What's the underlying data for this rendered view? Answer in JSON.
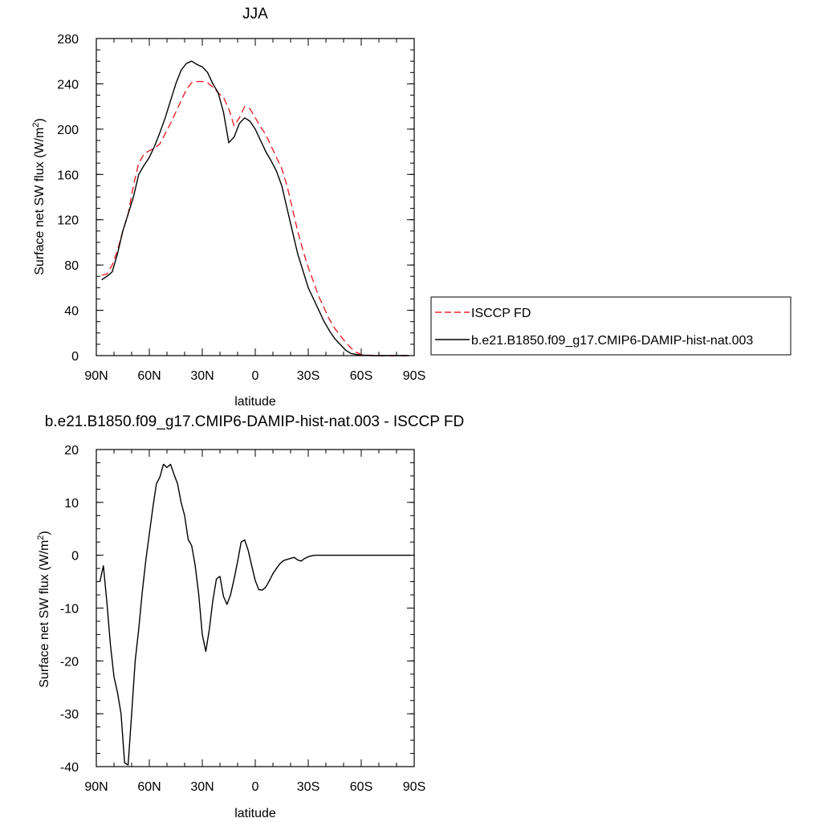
{
  "chart_data": [
    {
      "type": "line",
      "title": "JJA",
      "xlabel": "latitude",
      "ylabel": "Surface net SW flux (W/m",
      "ylabel_sup": "2",
      "ylabel_close": ")",
      "xlim": [
        90,
        -90
      ],
      "ylim": [
        0,
        280
      ],
      "xticks": [
        90,
        60,
        30,
        0,
        -30,
        -60,
        -90
      ],
      "xtick_labels": [
        "90N",
        "60N",
        "30N",
        "0",
        "30S",
        "60S",
        "90S"
      ],
      "yticks": [
        0,
        40,
        80,
        120,
        160,
        200,
        240,
        280
      ],
      "ytick_labels": [
        "0",
        "40",
        "80",
        "120",
        "160",
        "200",
        "240",
        "280"
      ],
      "legend": {
        "placement": "right",
        "entries": [
          "ISCCP FD",
          "b.e21.B1850.f09_g17.CMIP6-DAMIP-hist-nat.003"
        ]
      },
      "series": [
        {
          "name": "ISCCP FD",
          "color": "#e8242a",
          "dash": true,
          "x": [
            87,
            84,
            81,
            78,
            75,
            72,
            69,
            66,
            63,
            60,
            57,
            54,
            51,
            48,
            45,
            42,
            39,
            36,
            33,
            30,
            27,
            24,
            21,
            18,
            15,
            12,
            9,
            6,
            3,
            0,
            -3,
            -6,
            -9,
            -12,
            -15,
            -18,
            -21,
            -24,
            -27,
            -30,
            -33,
            -36,
            -39,
            -42,
            -45,
            -48,
            -51,
            -54,
            -57,
            -60,
            -63,
            -66,
            -69,
            -72,
            -75,
            -78,
            -81,
            -84,
            -87
          ],
          "y": [
            71,
            72,
            80,
            93,
            110,
            125,
            150,
            170,
            178,
            181,
            183,
            187,
            196,
            205,
            215,
            225,
            235,
            241,
            242,
            242,
            241,
            237,
            232,
            228,
            218,
            203,
            210,
            220,
            218,
            210,
            202,
            195,
            185,
            175,
            165,
            150,
            130,
            110,
            93,
            78,
            65,
            52,
            42,
            32,
            24,
            18,
            12,
            7,
            3,
            1,
            0.5,
            0.2,
            0,
            0,
            0,
            0,
            0,
            0,
            0
          ]
        },
        {
          "name": "b.e21.B1850.f09_g17.CMIP6-DAMIP-hist-nat.003",
          "color": "#000000",
          "dash": false,
          "x": [
            87,
            84,
            81,
            78,
            75,
            72,
            69,
            66,
            63,
            60,
            57,
            54,
            51,
            48,
            45,
            42,
            39,
            36,
            33,
            30,
            27,
            24,
            21,
            18,
            15,
            12,
            9,
            6,
            3,
            0,
            -3,
            -6,
            -9,
            -12,
            -15,
            -18,
            -21,
            -24,
            -27,
            -30,
            -33,
            -36,
            -39,
            -42,
            -45,
            -48,
            -51,
            -54,
            -57,
            -60,
            -63,
            -66,
            -69,
            -72,
            -75,
            -78,
            -81,
            -84,
            -87
          ],
          "y": [
            67,
            70,
            74,
            90,
            110,
            125,
            140,
            160,
            168,
            175,
            185,
            197,
            210,
            225,
            240,
            252,
            258,
            260,
            257,
            255,
            250,
            240,
            232,
            215,
            188,
            193,
            205,
            210,
            207,
            200,
            190,
            180,
            172,
            163,
            150,
            130,
            110,
            90,
            75,
            60,
            50,
            40,
            30,
            22,
            15,
            10,
            5,
            2,
            1,
            0.5,
            0.2,
            0,
            0,
            0,
            0,
            0,
            0,
            0,
            0
          ]
        }
      ]
    },
    {
      "type": "line",
      "title": "b.e21.B1850.f09_g17.CMIP6-DAMIP-hist-nat.003 - ISCCP FD",
      "xlabel": "latitude",
      "ylabel": "Surface net SW flux (W/m",
      "ylabel_sup": "2",
      "ylabel_close": ")",
      "xlim": [
        90,
        -90
      ],
      "ylim": [
        -40,
        20
      ],
      "xticks": [
        90,
        60,
        30,
        0,
        -30,
        -60,
        -90
      ],
      "xtick_labels": [
        "90N",
        "60N",
        "30N",
        "0",
        "30S",
        "60S",
        "90S"
      ],
      "yticks": [
        -40,
        -30,
        -20,
        -10,
        0,
        10,
        20
      ],
      "ytick_labels": [
        "-40",
        "-30",
        "-20",
        "-10",
        "0",
        "10",
        "20"
      ],
      "series": [
        {
          "color": "#000000",
          "dash": false,
          "x": [
            88,
            86,
            84,
            82,
            80,
            78,
            76,
            74,
            72,
            70,
            68,
            66,
            64,
            62,
            60,
            58,
            56,
            54,
            52,
            50,
            48,
            46,
            44,
            42,
            40,
            38,
            36,
            34,
            32,
            30,
            28,
            26,
            24,
            22,
            20,
            18,
            16,
            14,
            12,
            10,
            8,
            6,
            4,
            2,
            0,
            -2,
            -4,
            -6,
            -8,
            -10,
            -12,
            -14,
            -16,
            -18,
            -20,
            -22,
            -24,
            -26,
            -28,
            -30,
            -32,
            -34,
            -36,
            -38,
            -40,
            -42,
            -44,
            -46,
            -48,
            -50,
            -52,
            -54,
            -56,
            -58,
            -60,
            -62,
            -64,
            -66,
            -68,
            -70,
            -72,
            -74,
            -76,
            -78,
            -80,
            -82,
            -84,
            -86,
            -88
          ],
          "y": [
            -5,
            -2,
            -9,
            -17,
            -23,
            -26,
            -30,
            -39.3,
            -39.7,
            -30,
            -20,
            -14,
            -7,
            -1,
            4,
            9,
            13.5,
            14.8,
            17.2,
            16.6,
            17.2,
            15.3,
            13.5,
            10,
            7.5,
            3,
            1.8,
            -2,
            -7.5,
            -15,
            -18.2,
            -14,
            -8.5,
            -4.5,
            -4,
            -7.8,
            -9.3,
            -7.5,
            -4.5,
            -1.2,
            2.5,
            2.9,
            0.9,
            -2,
            -4.8,
            -6.5,
            -6.6,
            -6,
            -4.8,
            -3.5,
            -2.5,
            -1.6,
            -1.0,
            -0.8,
            -0.6,
            -0.4,
            -0.9,
            -1.1,
            -0.6,
            -0.3,
            -0.1,
            0,
            0,
            0,
            0,
            0,
            0,
            0,
            0,
            0,
            0,
            0,
            0,
            0,
            0,
            0,
            0,
            0,
            0,
            0,
            0,
            0,
            0,
            0,
            0,
            0,
            0,
            0,
            0
          ]
        }
      ]
    }
  ]
}
